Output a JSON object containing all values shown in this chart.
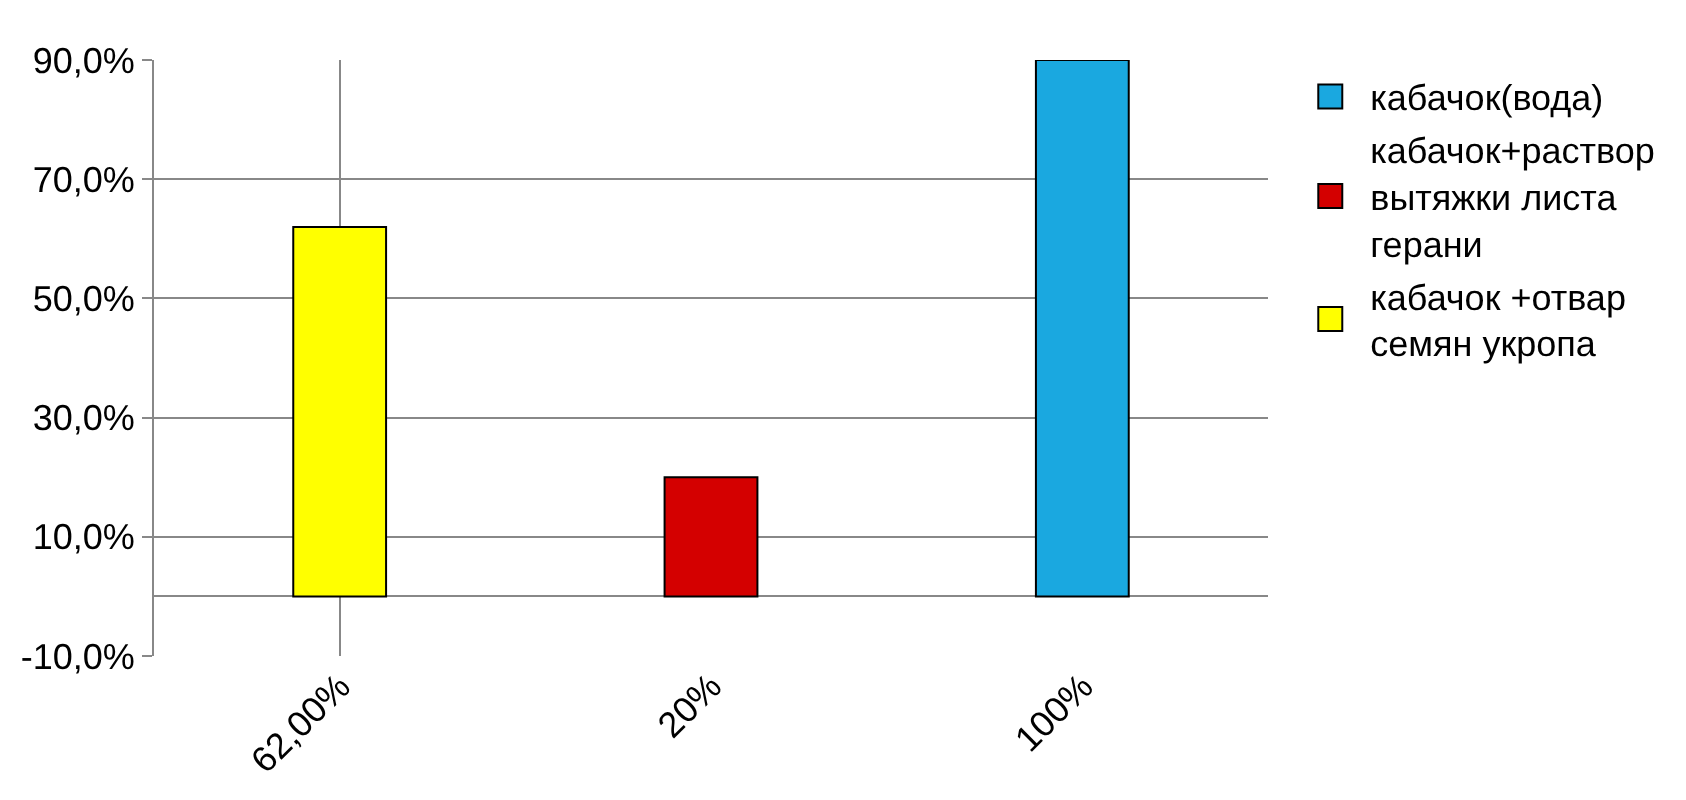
{
  "chart_data": {
    "type": "bar",
    "categories": [
      "62,00%",
      "20%",
      "100%"
    ],
    "series": [
      {
        "name": "кабачок(вода)",
        "color": "#1aa8e0",
        "values": [
          null,
          null,
          90
        ]
      },
      {
        "name": "кабачок+раствор вытяжки листа герани",
        "color": "#d40000",
        "values": [
          null,
          20,
          null
        ]
      },
      {
        "name": "кабачок +отвар семян укропа",
        "color": "#ffff00",
        "values": [
          62,
          null,
          null
        ]
      }
    ],
    "ylim": [
      -10,
      90
    ],
    "yticks": [
      {
        "value": -10,
        "label": "-10,0%"
      },
      {
        "value": 10,
        "label": "10,0%"
      },
      {
        "value": 30,
        "label": "30,0%"
      },
      {
        "value": 50,
        "label": "50,0%"
      },
      {
        "value": 70,
        "label": "70,0%"
      },
      {
        "value": 90,
        "label": "90,0%"
      }
    ],
    "grid": "y",
    "legend": "right"
  }
}
